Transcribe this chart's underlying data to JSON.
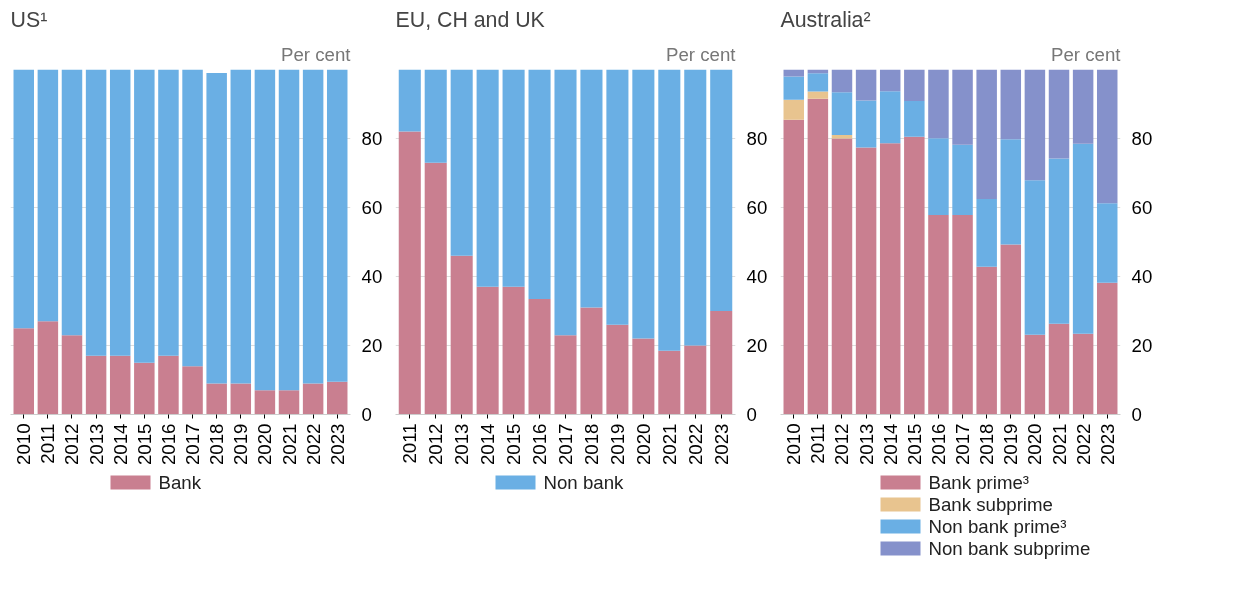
{
  "chart_data": [
    {
      "type": "bar",
      "stacked": true,
      "title": "US¹",
      "ylabel": "Per cent",
      "categories": [
        "2010",
        "2011",
        "2012",
        "2013",
        "2014",
        "2015",
        "2016",
        "2017",
        "2018",
        "2019",
        "2020",
        "2021",
        "2022",
        "2023"
      ],
      "ylim": [
        0,
        100
      ],
      "yticks": [
        0,
        20,
        40,
        60,
        80
      ],
      "grid": "y",
      "legend": "bottom",
      "series": [
        {
          "name": "Bank",
          "color": "#c97f90",
          "values": [
            25,
            27,
            23,
            17,
            17,
            15,
            17,
            14,
            9,
            9,
            7,
            7,
            9,
            9.5
          ]
        },
        {
          "color": "#6aafe4",
          "values": [
            75,
            73,
            77,
            83,
            83,
            85,
            83,
            86,
            90,
            91,
            93,
            93,
            91,
            90.5
          ]
        }
      ]
    },
    {
      "type": "bar",
      "stacked": true,
      "title": "EU, CH and UK",
      "ylabel": "Per cent",
      "categories": [
        "2011",
        "2012",
        "2013",
        "2014",
        "2015",
        "2016",
        "2017",
        "2018",
        "2019",
        "2020",
        "2021",
        "2022",
        "2023"
      ],
      "ylim": [
        0,
        100
      ],
      "yticks": [
        0,
        20,
        40,
        60,
        80
      ],
      "grid": "y",
      "legend": "bottom",
      "series": [
        {
          "color": "#c97f90",
          "values": [
            82,
            73,
            46,
            37,
            37,
            33.5,
            23,
            31,
            26,
            22,
            18.5,
            20,
            30
          ]
        },
        {
          "name": "Non bank",
          "color": "#6aafe4",
          "values": [
            18,
            27,
            54,
            63,
            63,
            66.5,
            77,
            69,
            74,
            78,
            81.5,
            80,
            70
          ]
        }
      ]
    },
    {
      "type": "bar",
      "stacked": true,
      "title": "Australia²",
      "ylabel": "Per cent",
      "categories": [
        "2010",
        "2011",
        "2012",
        "2013",
        "2014",
        "2015",
        "2016",
        "2017",
        "2018",
        "2019",
        "2020",
        "2021",
        "2022",
        "2023"
      ],
      "ylim": [
        0,
        100
      ],
      "yticks": [
        0,
        20,
        40,
        60,
        80
      ],
      "grid": "y",
      "legend": "bottom",
      "series": [
        {
          "name": "Bank prime³",
          "color": "#c97f90",
          "values": [
            85.4,
            91.5,
            80,
            77.4,
            78.6,
            80.5,
            57.8,
            57.8,
            42.8,
            49.3,
            23.1,
            26.3,
            23.4,
            38.2
          ]
        },
        {
          "name": "Bank subprime",
          "color": "#e8c48f",
          "values": [
            5.8,
            2.1,
            1,
            0,
            0,
            0,
            0,
            0,
            0,
            0,
            0,
            0,
            0,
            0
          ]
        },
        {
          "name": "Non bank prime³",
          "color": "#6aafe4",
          "values": [
            6.8,
            5.3,
            12.4,
            13.6,
            15.1,
            10.4,
            22.3,
            20.4,
            19.7,
            30.5,
            44.8,
            47.9,
            55.1,
            23
          ]
        },
        {
          "name": "Non bank subprime",
          "color": "#8591cb",
          "values": [
            2,
            1.1,
            6.6,
            9,
            6.3,
            9.1,
            19.9,
            21.8,
            37.5,
            20.2,
            32.1,
            25.8,
            21.5,
            38.8
          ]
        }
      ]
    }
  ]
}
